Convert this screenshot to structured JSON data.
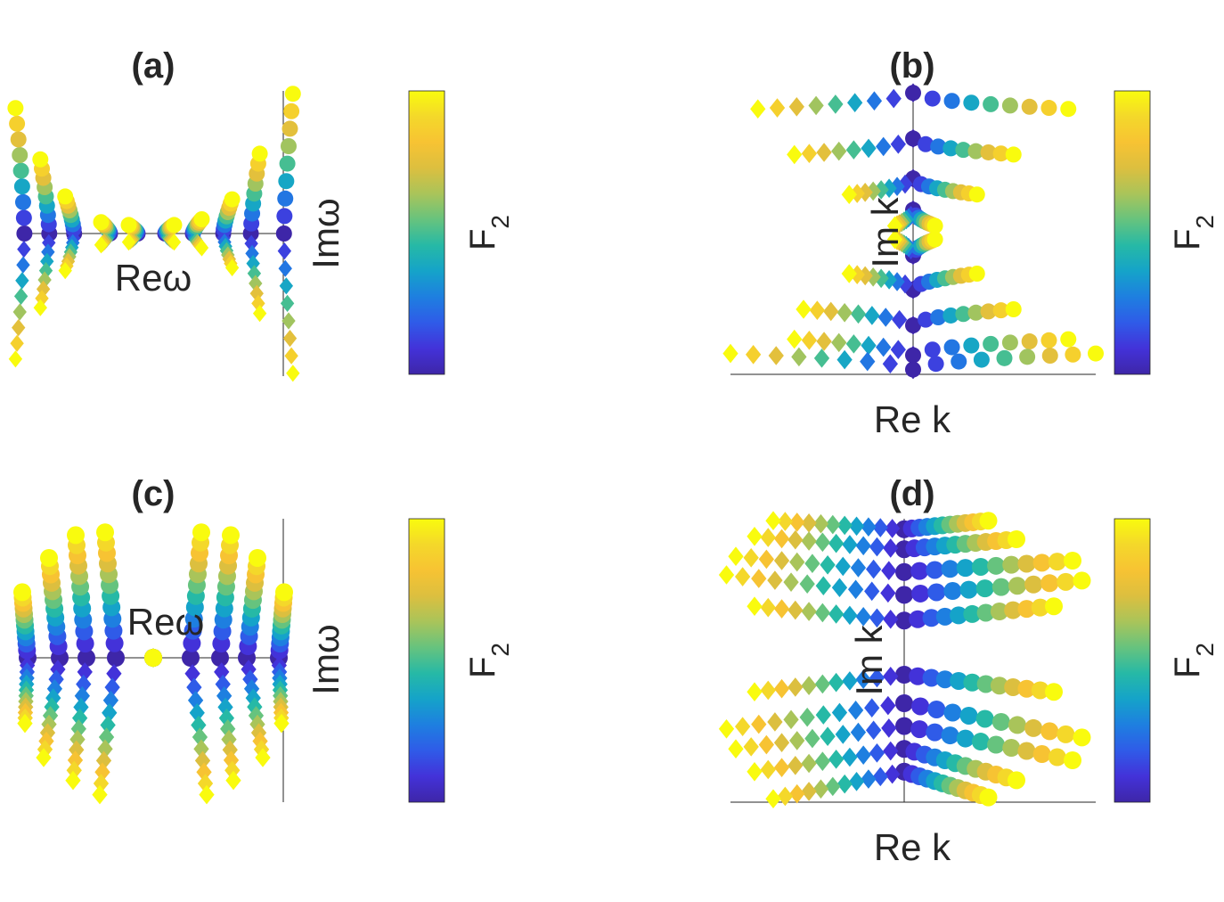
{
  "colormap": [
    "#3e26a8",
    "#4332d9",
    "#2f5be8",
    "#1e7fe0",
    "#15a3c9",
    "#26b9a6",
    "#66c37e",
    "#a9c45a",
    "#dcbf3f",
    "#f7c333",
    "#f4d82a",
    "#f9fb0e"
  ],
  "chart_data": [
    {
      "id": "a",
      "type": "scatter",
      "title": "(a)",
      "xlabel": "Reω",
      "ylabel": "Imω",
      "colorbar_label": "F2",
      "markers": {
        "upper": "circle",
        "lower": "diamond"
      },
      "grid": false,
      "ticks": false,
      "series": [
        {
          "re": -0.92,
          "top": 0.88,
          "bottom": -0.88
        },
        {
          "re": -0.74,
          "top": 0.52,
          "bottom": -0.52
        },
        {
          "re": -0.56,
          "top": 0.26,
          "bottom": -0.26
        },
        {
          "re": -0.3,
          "top": 0.08,
          "bottom": -0.08
        },
        {
          "re": -0.1,
          "top": 0.06,
          "bottom": -0.06
        },
        {
          "re": 0.1,
          "top": 0.06,
          "bottom": -0.06
        },
        {
          "re": 0.3,
          "top": 0.1,
          "bottom": -0.1
        },
        {
          "re": 0.52,
          "top": 0.24,
          "bottom": -0.24
        },
        {
          "re": 0.72,
          "top": 0.56,
          "bottom": -0.56
        },
        {
          "re": 0.96,
          "top": 0.98,
          "bottom": -0.98
        }
      ]
    },
    {
      "id": "b",
      "type": "scatter",
      "title": "(b)",
      "xlabel": "Re k",
      "ylabel": "Im k",
      "colorbar_label": "F2",
      "markers": {
        "left": "diamond",
        "right": "circle"
      },
      "grid": false,
      "ticks": false,
      "series": [
        {
          "im": 0.98,
          "left_re": -0.85,
          "right_re": 0.85
        },
        {
          "im": 0.66,
          "left_re": -0.65,
          "right_re": 0.55
        },
        {
          "im": 0.38,
          "left_re": -0.35,
          "right_re": 0.35
        },
        {
          "im": 0.16,
          "left_re": -0.1,
          "right_re": 0.12
        },
        {
          "im": -0.16,
          "left_re": -0.1,
          "right_re": 0.12
        },
        {
          "im": -0.4,
          "left_re": -0.35,
          "right_re": 0.35
        },
        {
          "im": -0.65,
          "left_re": -0.6,
          "right_re": 0.55
        },
        {
          "im": -0.86,
          "left_re": -0.65,
          "right_re": 0.85
        },
        {
          "im": -0.96,
          "left_re": -1.0,
          "right_re": 1.0
        }
      ]
    },
    {
      "id": "c",
      "type": "scatter",
      "title": "(c)",
      "xlabel": "Reω",
      "ylabel": "Imω",
      "colorbar_label": "F2",
      "markers": {
        "upper": "circle",
        "lower": "diamond"
      },
      "grid": false,
      "ticks": false,
      "series": [
        {
          "re": -0.94,
          "top_re": -0.98,
          "top": 0.46,
          "bottom_re": -0.96,
          "bottom": -0.46
        },
        {
          "re": -0.7,
          "top_re": -0.78,
          "top": 0.7,
          "bottom_re": -0.82,
          "bottom": -0.7
        },
        {
          "re": -0.5,
          "top_re": -0.58,
          "top": 0.86,
          "bottom_re": -0.6,
          "bottom": -0.86
        },
        {
          "re": -0.28,
          "top_re": -0.36,
          "top": 0.88,
          "bottom_re": -0.4,
          "bottom": -0.96
        },
        {
          "re": 0.0,
          "top_re": 0.0,
          "top": 0.0,
          "bottom_re": 0.0,
          "bottom": 0.0
        },
        {
          "re": 0.28,
          "top_re": 0.36,
          "top": 0.88,
          "bottom_re": 0.4,
          "bottom": -0.96
        },
        {
          "re": 0.5,
          "top_re": 0.58,
          "top": 0.86,
          "bottom_re": 0.6,
          "bottom": -0.86
        },
        {
          "re": 0.7,
          "top_re": 0.78,
          "top": 0.7,
          "bottom_re": 0.82,
          "bottom": -0.7
        },
        {
          "re": 0.94,
          "top_re": 0.98,
          "top": 0.46,
          "bottom_re": 0.96,
          "bottom": -0.46
        }
      ]
    },
    {
      "id": "d",
      "type": "scatter",
      "title": "(d)",
      "xlabel": "Re k",
      "ylabel": "Im k",
      "colorbar_label": "F2",
      "markers": {
        "left": "diamond",
        "right": "circle"
      },
      "grid": false,
      "ticks": false,
      "series": [
        {
          "im": 0.92,
          "left_re": -0.7,
          "right_re": 0.45,
          "left_im": 0.98,
          "right_im": 0.98
        },
        {
          "im": 0.78,
          "left_re": -0.8,
          "right_re": 0.6,
          "left_im": 0.87,
          "right_im": 0.85
        },
        {
          "im": 0.62,
          "left_re": -0.9,
          "right_re": 0.9,
          "left_im": 0.73,
          "right_im": 0.7
        },
        {
          "im": 0.46,
          "left_re": -0.95,
          "right_re": 0.95,
          "left_im": 0.6,
          "right_im": 0.56
        },
        {
          "im": 0.28,
          "left_re": -0.8,
          "right_re": 0.8,
          "left_im": 0.38,
          "right_im": 0.38
        },
        {
          "im": -0.1,
          "left_re": -0.8,
          "right_re": 0.8,
          "left_im": -0.22,
          "right_im": -0.22
        },
        {
          "im": -0.3,
          "left_re": -0.95,
          "right_re": 0.95,
          "left_im": -0.48,
          "right_im": -0.54
        },
        {
          "im": -0.46,
          "left_re": -0.9,
          "right_re": 0.9,
          "left_im": -0.62,
          "right_im": -0.7
        },
        {
          "im": -0.62,
          "left_re": -0.8,
          "right_re": 0.6,
          "left_im": -0.78,
          "right_im": -0.84
        },
        {
          "im": -0.78,
          "left_re": -0.7,
          "right_re": 0.45,
          "left_im": -0.97,
          "right_im": -0.96
        }
      ]
    }
  ]
}
